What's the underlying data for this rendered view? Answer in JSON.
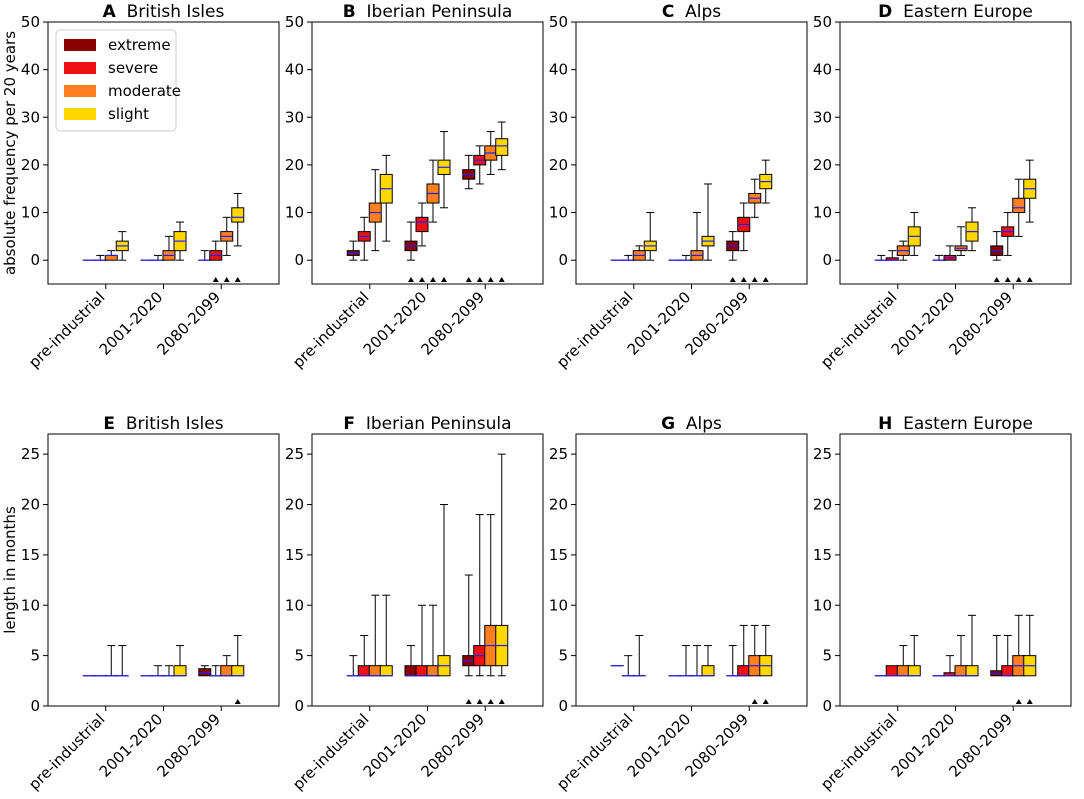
{
  "colors": {
    "extreme": "#8b0000",
    "severe": "#ee1111",
    "moderate": "#ff7f1e",
    "slight": "#ffd700",
    "median": "#1f1fff",
    "edge": "#000000"
  },
  "legend": {
    "entries": [
      {
        "key": "extreme",
        "label": "extreme"
      },
      {
        "key": "severe",
        "label": "severe"
      },
      {
        "key": "moderate",
        "label": "moderate"
      },
      {
        "key": "slight",
        "label": "slight"
      }
    ],
    "placement": "upper-left of panel A"
  },
  "chart_data": [
    {
      "type": "box",
      "panel": "A",
      "title": "British Isles",
      "ylabel": "absolute frequency per 20 years",
      "ylim": [
        -5,
        50
      ],
      "yticks": [
        0,
        10,
        20,
        30,
        40,
        50
      ],
      "categories": [
        "pre-industrial",
        "2001-2020",
        "2080-2099"
      ],
      "series": [
        {
          "name": "extreme",
          "boxes": [
            [
              0,
              0,
              0,
              0,
              0
            ],
            [
              0,
              0,
              0,
              0,
              0
            ],
            [
              0,
              0,
              0,
              0,
              2
            ]
          ]
        },
        {
          "name": "severe",
          "boxes": [
            [
              0,
              0,
              0,
              0,
              1
            ],
            [
              0,
              0,
              0,
              0,
              1
            ],
            [
              0,
              0,
              1,
              2,
              4
            ]
          ]
        },
        {
          "name": "moderate",
          "boxes": [
            [
              0,
              0,
              1,
              1,
              2
            ],
            [
              0,
              0,
              1,
              2,
              5
            ],
            [
              1,
              4,
              5,
              6,
              9
            ]
          ]
        },
        {
          "name": "slight",
          "boxes": [
            [
              0,
              2,
              3,
              4,
              6
            ],
            [
              0,
              2,
              4,
              6,
              8
            ],
            [
              3,
              8,
              9,
              11,
              14
            ]
          ]
        }
      ],
      "markers": [
        [
          false,
          false,
          false,
          false
        ],
        [
          false,
          false,
          false,
          false
        ],
        [
          false,
          true,
          true,
          true
        ]
      ]
    },
    {
      "type": "box",
      "panel": "B",
      "title": "Iberian Peninsula",
      "ylabel": "",
      "ylim": [
        -5,
        50
      ],
      "yticks": [
        0,
        10,
        20,
        30,
        40,
        50
      ],
      "categories": [
        "pre-industrial",
        "2001-2020",
        "2080-2099"
      ],
      "series": [
        {
          "name": "extreme",
          "boxes": [
            [
              0,
              1,
              1.5,
              2,
              4
            ],
            [
              0,
              2,
              3,
              4,
              8
            ],
            [
              15,
              17,
              18,
              19,
              22
            ]
          ]
        },
        {
          "name": "severe",
          "boxes": [
            [
              0,
              4,
              5,
              6,
              9
            ],
            [
              3,
              6,
              8,
              9,
              12
            ],
            [
              16,
              20,
              21,
              22,
              24
            ]
          ]
        },
        {
          "name": "moderate",
          "boxes": [
            [
              2,
              8,
              10,
              12,
              19
            ],
            [
              8,
              12,
              14,
              16,
              21
            ],
            [
              18,
              21,
              22.5,
              24,
              27
            ]
          ]
        },
        {
          "name": "slight",
          "boxes": [
            [
              4,
              12,
              15,
              18,
              22
            ],
            [
              11,
              18,
              19.5,
              21,
              27
            ],
            [
              19,
              22,
              24,
              25.5,
              29
            ]
          ]
        }
      ],
      "markers": [
        [
          false,
          false,
          false,
          false
        ],
        [
          true,
          true,
          true,
          true
        ],
        [
          true,
          true,
          true,
          true
        ]
      ]
    },
    {
      "type": "box",
      "panel": "C",
      "title": "Alps",
      "ylabel": "",
      "ylim": [
        -5,
        50
      ],
      "yticks": [
        0,
        10,
        20,
        30,
        40,
        50
      ],
      "categories": [
        "pre-industrial",
        "2001-2020",
        "2080-2099"
      ],
      "series": [
        {
          "name": "extreme",
          "boxes": [
            [
              0,
              0,
              0,
              0,
              0
            ],
            [
              0,
              0,
              0,
              0,
              0
            ],
            [
              0,
              2,
              3,
              4,
              6
            ]
          ]
        },
        {
          "name": "severe",
          "boxes": [
            [
              0,
              0,
              0,
              0,
              1
            ],
            [
              0,
              0,
              0,
              0,
              1
            ],
            [
              2,
              6,
              7.5,
              9,
              12
            ]
          ]
        },
        {
          "name": "moderate",
          "boxes": [
            [
              0,
              0,
              1,
              2,
              3
            ],
            [
              0,
              0,
              1,
              2,
              10
            ],
            [
              9,
              12,
              13,
              14,
              17
            ]
          ]
        },
        {
          "name": "slight",
          "boxes": [
            [
              0,
              2,
              3,
              4,
              10
            ],
            [
              0,
              3,
              4,
              5,
              16
            ],
            [
              12,
              15,
              16.5,
              18,
              21
            ]
          ]
        }
      ],
      "markers": [
        [
          false,
          false,
          false,
          false
        ],
        [
          false,
          false,
          false,
          false
        ],
        [
          true,
          true,
          true,
          true
        ]
      ]
    },
    {
      "type": "box",
      "panel": "D",
      "title": "Eastern Europe",
      "ylabel": "",
      "ylim": [
        -5,
        50
      ],
      "yticks": [
        0,
        10,
        20,
        30,
        40,
        50
      ],
      "categories": [
        "pre-industrial",
        "2001-2020",
        "2080-2099"
      ],
      "series": [
        {
          "name": "extreme",
          "boxes": [
            [
              0,
              0,
              0,
              0,
              1
            ],
            [
              0,
              0,
              0,
              0,
              1
            ],
            [
              0,
              1,
              2,
              3,
              6
            ]
          ]
        },
        {
          "name": "severe",
          "boxes": [
            [
              0,
              0,
              0,
              0.5,
              2
            ],
            [
              0,
              0,
              0.5,
              1,
              3
            ],
            [
              1,
              5,
              6,
              7,
              10
            ]
          ]
        },
        {
          "name": "moderate",
          "boxes": [
            [
              0,
              1,
              2,
              3,
              4
            ],
            [
              1,
              2,
              2.5,
              3,
              7
            ],
            [
              5,
              10,
              11,
              13,
              17
            ]
          ]
        },
        {
          "name": "slight",
          "boxes": [
            [
              1,
              3,
              5,
              7,
              10
            ],
            [
              2,
              4,
              6,
              8,
              11
            ],
            [
              8,
              13,
              15,
              17,
              21
            ]
          ]
        }
      ],
      "markers": [
        [
          false,
          false,
          false,
          false
        ],
        [
          false,
          false,
          false,
          false
        ],
        [
          true,
          true,
          true,
          true
        ]
      ]
    },
    {
      "type": "box",
      "panel": "E",
      "title": "British Isles",
      "ylabel": "length in months",
      "ylim": [
        0,
        27
      ],
      "yticks": [
        0,
        5,
        10,
        15,
        20,
        25
      ],
      "categories": [
        "pre-industrial",
        "2001-2020",
        "2080-2099"
      ],
      "series": [
        {
          "name": "extreme",
          "boxes": [
            [
              3,
              3,
              3,
              3,
              3
            ],
            [
              3,
              3,
              3,
              3,
              3
            ],
            [
              3,
              3,
              3.3,
              3.7,
              4
            ]
          ]
        },
        {
          "name": "severe",
          "boxes": [
            [
              3,
              3,
              3,
              3,
              3
            ],
            [
              3,
              3,
              3,
              3,
              4
            ],
            [
              3,
              3,
              3,
              3,
              4
            ]
          ]
        },
        {
          "name": "moderate",
          "boxes": [
            [
              3,
              3,
              3,
              3,
              6
            ],
            [
              3,
              3,
              3,
              3,
              4
            ],
            [
              3,
              3,
              3,
              4,
              5
            ]
          ]
        },
        {
          "name": "slight",
          "boxes": [
            [
              3,
              3,
              3,
              3,
              6
            ],
            [
              3,
              3,
              3,
              4,
              6
            ],
            [
              3,
              3,
              3,
              4,
              7
            ]
          ]
        }
      ],
      "markers": [
        [
          false,
          false,
          false,
          false
        ],
        [
          false,
          false,
          false,
          false
        ],
        [
          false,
          false,
          false,
          true
        ]
      ]
    },
    {
      "type": "box",
      "panel": "F",
      "title": "Iberian Peninsula",
      "ylabel": "",
      "ylim": [
        0,
        27
      ],
      "yticks": [
        0,
        5,
        10,
        15,
        20,
        25
      ],
      "categories": [
        "pre-industrial",
        "2001-2020",
        "2080-2099"
      ],
      "series": [
        {
          "name": "extreme",
          "boxes": [
            [
              3,
              3,
              3,
              3,
              5
            ],
            [
              3,
              3,
              3,
              4,
              6
            ],
            [
              3,
              4,
              4.5,
              5,
              13
            ]
          ]
        },
        {
          "name": "severe",
          "boxes": [
            [
              3,
              3,
              3,
              4,
              7
            ],
            [
              3,
              3,
              3,
              4,
              10
            ],
            [
              3,
              4,
              5,
              6,
              19
            ]
          ]
        },
        {
          "name": "moderate",
          "boxes": [
            [
              3,
              3,
              3,
              4,
              11
            ],
            [
              3,
              3,
              3,
              4,
              10
            ],
            [
              3,
              4,
              6,
              8,
              19
            ]
          ]
        },
        {
          "name": "slight",
          "boxes": [
            [
              3,
              3,
              3,
              4,
              11
            ],
            [
              3,
              3,
              4,
              5,
              20
            ],
            [
              3,
              4,
              6,
              8,
              25
            ]
          ]
        }
      ],
      "markers": [
        [
          false,
          false,
          false,
          false
        ],
        [
          false,
          false,
          false,
          false
        ],
        [
          true,
          true,
          true,
          true
        ]
      ]
    },
    {
      "type": "box",
      "panel": "G",
      "title": "Alps",
      "ylabel": "",
      "ylim": [
        0,
        27
      ],
      "yticks": [
        0,
        5,
        10,
        15,
        20,
        25
      ],
      "categories": [
        "pre-industrial",
        "2001-2020",
        "2080-2099"
      ],
      "series": [
        {
          "name": "extreme",
          "boxes": [
            [
              4,
              4,
              4,
              4,
              4
            ],
            [
              3,
              3,
              3,
              3,
              3
            ],
            [
              3,
              3,
              3,
              3,
              6
            ]
          ]
        },
        {
          "name": "severe",
          "boxes": [
            [
              3,
              3,
              3,
              3,
              5
            ],
            [
              3,
              3,
              3,
              3,
              6
            ],
            [
              3,
              3,
              3,
              4,
              8
            ]
          ]
        },
        {
          "name": "moderate",
          "boxes": [
            [
              3,
              3,
              3,
              3,
              7
            ],
            [
              3,
              3,
              3,
              3,
              6
            ],
            [
              3,
              3,
              4,
              5,
              8
            ]
          ]
        },
        {
          "name": "slight",
          "boxes": [
            null,
            [
              3,
              3,
              3,
              4,
              6
            ],
            [
              3,
              3,
              4,
              5,
              8
            ]
          ]
        }
      ],
      "markers": [
        [
          false,
          false,
          false,
          false
        ],
        [
          false,
          false,
          false,
          false
        ],
        [
          false,
          false,
          true,
          true
        ]
      ]
    },
    {
      "type": "box",
      "panel": "H",
      "title": "Eastern Europe",
      "ylabel": "",
      "ylim": [
        0,
        27
      ],
      "yticks": [
        0,
        5,
        10,
        15,
        20,
        25
      ],
      "categories": [
        "pre-industrial",
        "2001-2020",
        "2080-2099"
      ],
      "series": [
        {
          "name": "extreme",
          "boxes": [
            [
              3,
              3,
              3,
              3,
              3
            ],
            [
              3,
              3,
              3,
              3,
              3
            ],
            [
              3,
              3,
              3.2,
              3.5,
              7
            ]
          ]
        },
        {
          "name": "severe",
          "boxes": [
            [
              3,
              3,
              3,
              4,
              4
            ],
            [
              3,
              3,
              3,
              3.3,
              5
            ],
            [
              3,
              3,
              3,
              4,
              7
            ]
          ]
        },
        {
          "name": "moderate",
          "boxes": [
            [
              3,
              3,
              3,
              4,
              6
            ],
            [
              3,
              3,
              3,
              4,
              7
            ],
            [
              3,
              3,
              4,
              5,
              9
            ]
          ]
        },
        {
          "name": "slight",
          "boxes": [
            [
              3,
              3,
              3,
              4,
              7
            ],
            [
              3,
              3,
              3,
              4,
              9
            ],
            [
              3,
              3,
              4,
              5,
              9
            ]
          ]
        }
      ],
      "markers": [
        [
          false,
          false,
          false,
          false
        ],
        [
          false,
          false,
          false,
          false
        ],
        [
          false,
          false,
          true,
          true
        ]
      ]
    }
  ]
}
